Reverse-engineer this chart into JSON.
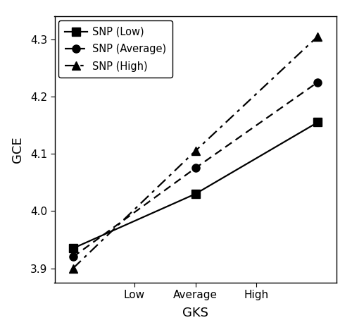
{
  "x_data": [
    0,
    1,
    2
  ],
  "x_ticks": [
    0.5,
    1.0,
    1.5
  ],
  "x_ticklabels": [
    "Low",
    "Average",
    "High"
  ],
  "x_label": "GKS",
  "y_label": "GCE",
  "ylim": [
    3.875,
    4.34
  ],
  "yticks": [
    3.9,
    4.0,
    4.1,
    4.2,
    4.3
  ],
  "xlim": [
    -0.15,
    2.15
  ],
  "series": [
    {
      "label": "SNP (Low)",
      "y": [
        3.935,
        4.03,
        4.155
      ],
      "linestyle": "solid",
      "marker": "s",
      "color": "#000000",
      "linewidth": 1.6,
      "markersize": 8,
      "dashes": null
    },
    {
      "label": "SNP (Average)",
      "y": [
        3.92,
        4.075,
        4.225
      ],
      "linestyle": "dashed",
      "marker": "o",
      "color": "#000000",
      "linewidth": 1.6,
      "markersize": 8,
      "dashes": [
        5,
        3
      ]
    },
    {
      "label": "SNP (High)",
      "y": [
        3.9,
        4.105,
        4.305
      ],
      "linestyle": "dashdot",
      "marker": "^",
      "color": "#000000",
      "linewidth": 1.6,
      "markersize": 9,
      "dashes": [
        7,
        3,
        2,
        3
      ]
    }
  ],
  "legend_loc": "upper left",
  "legend_fontsize": 10.5,
  "axis_fontsize": 13,
  "tick_fontsize": 11,
  "figure_facecolor": "#ffffff",
  "axes_facecolor": "#ffffff",
  "outer_border": true
}
